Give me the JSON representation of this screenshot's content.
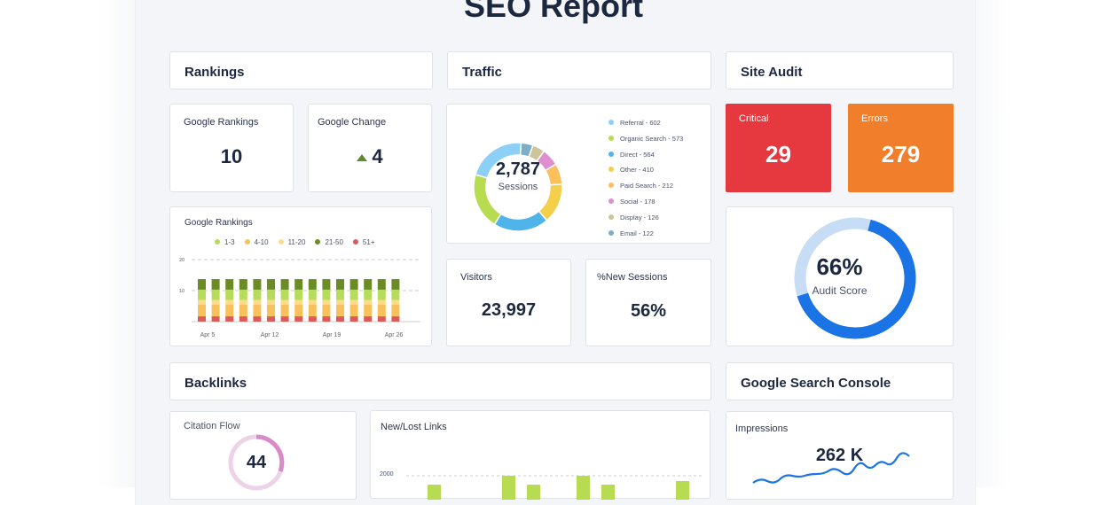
{
  "title": "SEO Report",
  "rankings": {
    "header": "Rankings",
    "google_rankings_label": "Google Rankings",
    "google_rankings_value": "10",
    "google_change_label": "Google Change",
    "google_change_value": "4",
    "google_change_direction": "up"
  },
  "rankings_chart": {
    "chart_data": {
      "type": "bar",
      "stacked": true,
      "title": "Google Rankings",
      "ylim": [
        0,
        20
      ],
      "yticks": [
        "10",
        "20"
      ],
      "xticks": [
        "Apr 5",
        "Apr 12",
        "Apr 19",
        "Apr 26"
      ],
      "legend_placement": "top",
      "grid": true,
      "series": [
        {
          "name": "1-3",
          "color": "#b7dc5a",
          "values": [
            3.3,
            3.3,
            3.3,
            3.3,
            3.3,
            3.3,
            3.3,
            3.3,
            3.3,
            3.3,
            3.3,
            3.3,
            3.3,
            3.3,
            3.3
          ]
        },
        {
          "name": "4-10",
          "color": "#f8c15c",
          "values": [
            3.8,
            3.8,
            3.8,
            3.8,
            3.8,
            3.8,
            3.8,
            3.8,
            3.8,
            3.8,
            3.8,
            3.8,
            3.8,
            3.8,
            3.8
          ]
        },
        {
          "name": "11-20",
          "color": "#fcdc8c",
          "values": [
            1.5,
            1.5,
            1.5,
            1.5,
            1.5,
            1.5,
            1.5,
            1.5,
            1.5,
            1.5,
            1.5,
            1.5,
            1.5,
            1.5,
            1.5
          ]
        },
        {
          "name": "21-50",
          "color": "#6b8c24",
          "values": [
            3.4,
            3.4,
            3.4,
            3.4,
            3.4,
            3.4,
            3.4,
            3.4,
            3.4,
            3.4,
            3.4,
            3.4,
            3.4,
            3.4,
            3.4
          ]
        },
        {
          "name": "51+",
          "color": "#dc5a5a",
          "values": [
            1.7,
            1.7,
            1.7,
            1.7,
            1.7,
            1.7,
            1.7,
            1.7,
            1.7,
            1.7,
            1.7,
            1.7,
            1.7,
            1.7,
            1.7
          ]
        }
      ]
    }
  },
  "traffic": {
    "header": "Traffic",
    "total": "2,787",
    "total_label": "Sessions",
    "chart_data": {
      "type": "pie",
      "donut": true,
      "slices": [
        {
          "name": "Referral",
          "value": 602,
          "label": "Referral - 602",
          "color": "#8ccff7"
        },
        {
          "name": "Organic Search",
          "value": 573,
          "label": "Organic Search - 573",
          "color": "#b7dc52"
        },
        {
          "name": "Direct",
          "value": 564,
          "label": "Direct - 564",
          "color": "#4fb4ea"
        },
        {
          "name": "Other",
          "value": 410,
          "label": "Other - 410",
          "color": "#f3cf4c"
        },
        {
          "name": "Paid Search",
          "value": 212,
          "label": "Paid Search - 212",
          "color": "#fbbf5c"
        },
        {
          "name": "Social",
          "value": 178,
          "label": "Social - 178",
          "color": "#de8fcf"
        },
        {
          "name": "Display",
          "value": 126,
          "label": "Display - 126",
          "color": "#cdc59a"
        },
        {
          "name": "Email",
          "value": 122,
          "label": "Email - 122",
          "color": "#7eaec4"
        }
      ]
    },
    "visitors_label": "Visitors",
    "visitors_value": "23,997",
    "new_sessions_label": "%New Sessions",
    "new_sessions_value": "56%"
  },
  "site_audit": {
    "header": "Site Audit",
    "critical_label": "Critical",
    "critical_value": "29",
    "errors_label": "Errors",
    "errors_value": "279",
    "score": "66%",
    "score_fraction": 0.66,
    "score_label": "Audit Score",
    "critical_color": "#e5393f",
    "errors_color": "#f07e2b",
    "score_color": "#1a74e6"
  },
  "backlinks": {
    "header": "Backlinks",
    "citation_flow_label": "Citation Flow",
    "citation_flow_value": "44",
    "new_lost_label": "New/Lost Links",
    "new_lost_ytick": "2000"
  },
  "gsc": {
    "header": "Google Search Console",
    "impressions_label": "Impressions",
    "impressions_value": "262 K"
  }
}
